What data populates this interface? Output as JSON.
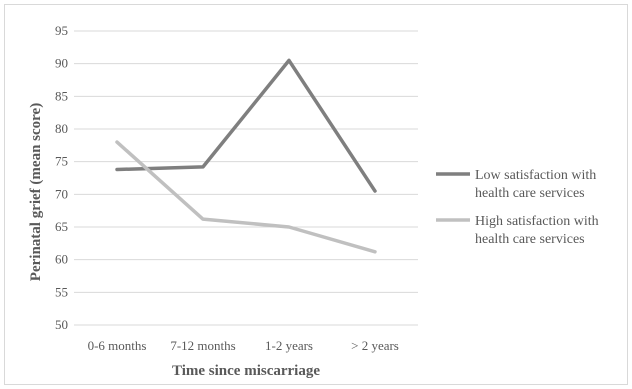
{
  "chart_data": {
    "type": "line",
    "title": "",
    "xlabel": "Time since miscarriage",
    "ylabel": "Perinatal grief (mean score)",
    "categories": [
      "0-6 months",
      "7-12 months",
      "1-2 years",
      "> 2 years"
    ],
    "ylim": [
      50,
      95
    ],
    "yticks": [
      50,
      55,
      60,
      65,
      70,
      75,
      80,
      85,
      90,
      95
    ],
    "grid": true,
    "legend_position": "right",
    "series": [
      {
        "name_lines": [
          "Low satisfaction with",
          "health care services"
        ],
        "values": [
          73.8,
          74.2,
          90.5,
          70.5
        ],
        "color": "#7f7f7f"
      },
      {
        "name_lines": [
          "High satisfaction with",
          "health care services"
        ],
        "values": [
          78.0,
          66.2,
          65.0,
          61.2
        ],
        "color": "#c0c0c0"
      }
    ]
  }
}
